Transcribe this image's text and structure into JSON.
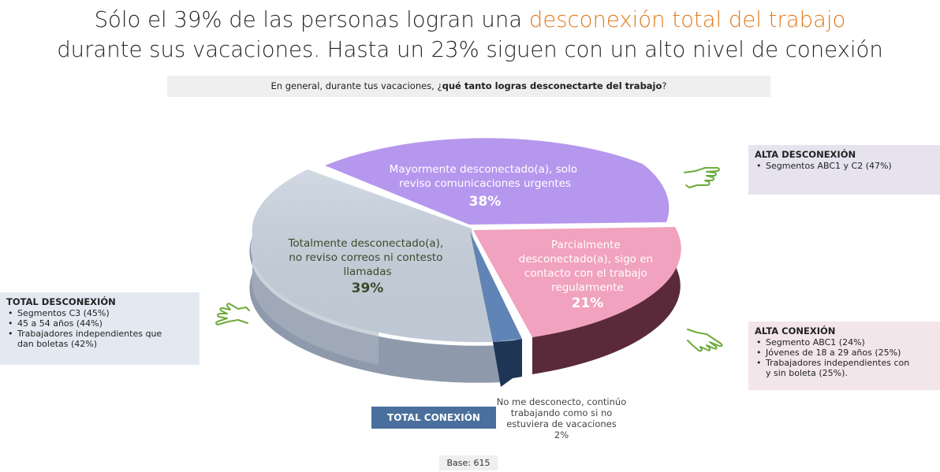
{
  "headline": {
    "line1_prefix": "Sólo el 39% de las personas logran una ",
    "line1_accent": "desconexión total del trabajo",
    "line2": "durante sus vacaciones. Hasta un 23% siguen con un alto nivel de conexión"
  },
  "question": {
    "prefix": "En general, durante tus vacaciones, ¿",
    "bold": "qué tanto logras desconectarte del trabajo",
    "suffix": "?"
  },
  "chart_data": {
    "type": "pie",
    "title": "",
    "slices": [
      {
        "label_lines": [
          "Mayormente desconectado(a), solo",
          "reviso comunicaciones urgentes"
        ],
        "value": 38,
        "value_label": "38%",
        "color": "#b697ee"
      },
      {
        "label_lines": [
          "Parcialmente",
          "desconectado(a), sigo en",
          "contacto con el trabajo",
          "regularmente"
        ],
        "value": 21,
        "value_label": "21%",
        "color": "#f0a2be"
      },
      {
        "label_lines": [
          "No me desconecto, continúo",
          "trabajando como si no",
          "estuviera de vacaciones",
          "2%"
        ],
        "value": 2,
        "value_label": "2%",
        "color": "#5f84b5"
      },
      {
        "label_lines": [
          "Totalmente desconectado(a),",
          "no reviso correos ni contesto",
          "llamadas"
        ],
        "value": 39,
        "value_label": "39%",
        "color": "#c9d3df"
      }
    ]
  },
  "total_desconexion": {
    "title": "TOTAL DESCONEXIÓN",
    "items": [
      "Segmentos C3 (45%)",
      "45 a 54 años (44%)",
      "Trabajadores independientes que",
      "dan boletas (42%)"
    ]
  },
  "alta_desconexion": {
    "title": "ALTA DESCONEXIÓN",
    "items": [
      "Segmentos ABC1 y C2 (47%)"
    ]
  },
  "alta_conexion": {
    "title": "ALTA CONEXIÓN",
    "items": [
      "Segmento ABC1 (24%)",
      "Jóvenes de 18 a 29 años (25%)",
      "Trabajadores independientes con",
      "y sin boleta (25%)."
    ]
  },
  "total_conexion_label": "TOTAL CONEXIÓN",
  "base": "Base: 615",
  "colors": {
    "accent": "#e07b1f",
    "hand": "#6dab3c"
  }
}
